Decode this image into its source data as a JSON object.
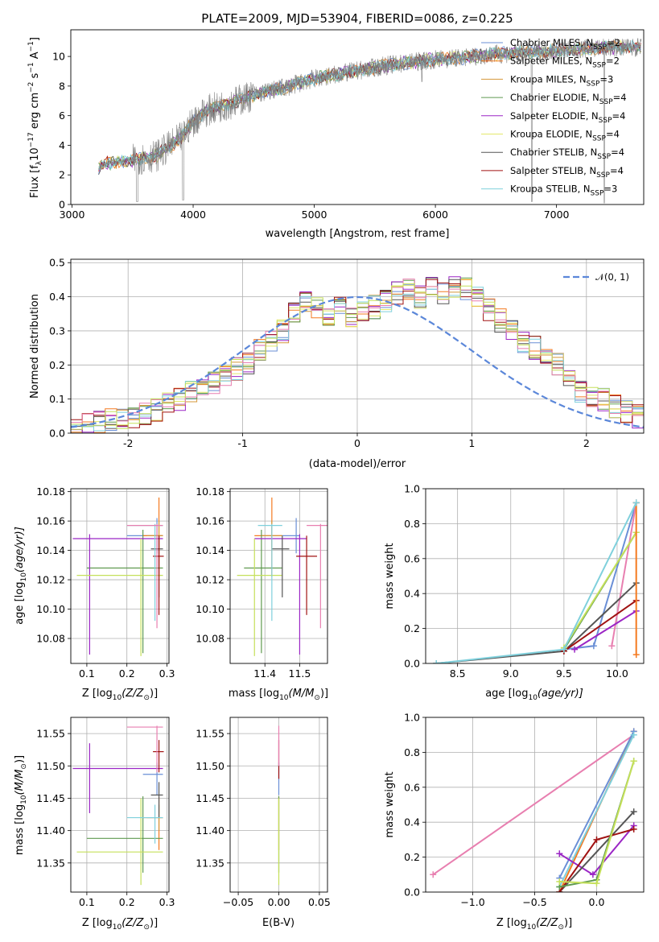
{
  "colors": {
    "Chabrier MILES": "#6a8fd6",
    "Salpeter MILES": "#f47a20",
    "Kroupa MILES": "#d4973a",
    "Chabrier ELODIE": "#5f9a50",
    "Salpeter ELODIE": "#9b26c5",
    "Kroupa ELODIE": "#e3e86a",
    "Chabrier STELIB": "#555555",
    "Salpeter STELIB": "#a01212",
    "Kroupa STELIB": "#7fd0dc",
    "Kroupa ELODIE alt": "#c5e05a",
    "pink": "#e87fb0",
    "data": "#808080",
    "normal": "#5b87d9"
  },
  "chart_data": [
    {
      "id": "spectrum",
      "type": "line",
      "title": "PLATE=2009, MJD=53904, FIBERID=0086, z=0.225",
      "xlabel": "wavelength [Angstrom, rest frame]",
      "ylabel": "Flux [f",
      "ylabel_sub": "λ",
      "ylabel_rest": "10",
      "ylabel_exp1": "−17",
      "ylabel_mid": " erg cm",
      "ylabel_exp2": "−2",
      "ylabel_mid2": " s",
      "ylabel_exp3": "−1",
      "ylabel_end": " A",
      "ylabel_exp4": "−1",
      "ylabel_close": "]",
      "xlim": [
        2990,
        7720
      ],
      "ylim": [
        0,
        11.8
      ],
      "xticks": [
        3000,
        4000,
        5000,
        6000,
        7000
      ],
      "yticks": [
        0,
        2,
        4,
        6,
        8,
        10
      ],
      "continuum_x": [
        3200,
        3300,
        3500,
        3700,
        3900,
        4000,
        4100,
        4300,
        4500,
        4800,
        5000,
        5200,
        5400,
        5600,
        5800,
        6000,
        6200,
        6400,
        6600,
        6800,
        7000,
        7200,
        7400,
        7700
      ],
      "continuum_y": [
        2.4,
        2.8,
        3.0,
        3.3,
        4.5,
        5.6,
        6.3,
        6.8,
        7.4,
        8.0,
        8.5,
        8.8,
        9.1,
        9.4,
        9.6,
        9.8,
        9.9,
        10.1,
        10.2,
        10.3,
        10.4,
        10.5,
        10.6,
        10.6
      ],
      "legend": [
        {
          "name": "Chabrier MILES",
          "suffix": "2"
        },
        {
          "name": "Salpeter MILES",
          "suffix": "2"
        },
        {
          "name": "Kroupa MILES",
          "suffix": "3"
        },
        {
          "name": "Chabrier ELODIE",
          "suffix": "4"
        },
        {
          "name": "Salpeter ELODIE",
          "suffix": "4"
        },
        {
          "name": "Kroupa ELODIE",
          "suffix": "4"
        },
        {
          "name": "Chabrier STELIB",
          "suffix": "4"
        },
        {
          "name": "Salpeter STELIB",
          "suffix": "4"
        },
        {
          "name": "Kroupa STELIB",
          "suffix": "3"
        }
      ],
      "legend_n": "N",
      "legend_ssp": "SSP",
      "legend_placement": "top-right"
    },
    {
      "id": "residuals",
      "type": "bar",
      "xlabel": "(data-model)/error",
      "ylabel": "Normed distribution",
      "xlim": [
        -2.5,
        2.5
      ],
      "ylim": [
        0,
        0.51
      ],
      "xticks": [
        -2,
        -1,
        0,
        1,
        2
      ],
      "yticks": [
        0.0,
        0.1,
        0.2,
        0.3,
        0.4,
        0.5
      ],
      "grid": true,
      "bin_width": 0.1,
      "bin_start": -2.5,
      "histogram": [
        0.02,
        0.025,
        0.035,
        0.04,
        0.045,
        0.05,
        0.055,
        0.07,
        0.09,
        0.1,
        0.12,
        0.13,
        0.15,
        0.17,
        0.19,
        0.2,
        0.24,
        0.27,
        0.3,
        0.36,
        0.39,
        0.37,
        0.35,
        0.37,
        0.34,
        0.36,
        0.37,
        0.39,
        0.41,
        0.42,
        0.4,
        0.43,
        0.41,
        0.43,
        0.42,
        0.4,
        0.36,
        0.33,
        0.3,
        0.27,
        0.25,
        0.22,
        0.2,
        0.17,
        0.12,
        0.1,
        0.1,
        0.08,
        0.06,
        0.05,
        0.04
      ],
      "legend": "𝒩(0, 1)",
      "legend_placement": "top-right"
    },
    {
      "id": "age-vs-Z",
      "type": "scatter",
      "xlabel": "Z [log",
      "xlabel_sub": "10",
      "xlabel_rest": "(Z/Z",
      "xlabel_sun": "⊙",
      "xlabel_end": ")]",
      "ylabel": "age  [log",
      "ylabel_sub": "10",
      "ylabel_rest": "(age/yr)]",
      "xlim": [
        0.06,
        0.305
      ],
      "ylim": [
        10.063,
        10.182
      ],
      "xticks": [
        0.1,
        0.2,
        0.3
      ],
      "xtick_labels": [
        "0.1",
        "0.2",
        "0.3"
      ],
      "yticks": [
        10.08,
        10.1,
        10.12,
        10.14,
        10.16,
        10.18
      ],
      "points": [
        {
          "x": 0.275,
          "y": 10.15,
          "xl": 0.2,
          "xh": 0.29,
          "yl": 10.138,
          "yh": 10.162,
          "c": "#6a8fd6"
        },
        {
          "x": 0.28,
          "y": 10.15,
          "xl": 0.24,
          "xh": 0.29,
          "yl": 10.122,
          "yh": 10.176,
          "c": "#f47a20"
        },
        {
          "x": 0.28,
          "y": 10.15,
          "xl": 0.25,
          "xh": 0.29,
          "yl": 10.14,
          "yh": 10.16,
          "c": "#d4973a"
        },
        {
          "x": 0.24,
          "y": 10.128,
          "xl": 0.1,
          "xh": 0.29,
          "yl": 10.07,
          "yh": 10.154,
          "c": "#5f9a50"
        },
        {
          "x": 0.107,
          "y": 10.148,
          "xl": 0.065,
          "xh": 0.29,
          "yl": 10.069,
          "yh": 10.151,
          "c": "#9b26c5"
        },
        {
          "x": 0.235,
          "y": 10.123,
          "xl": 0.075,
          "xh": 0.29,
          "yl": 10.068,
          "yh": 10.148,
          "c": "#c5e05a"
        },
        {
          "x": 0.28,
          "y": 10.141,
          "xl": 0.26,
          "xh": 0.29,
          "yl": 10.108,
          "yh": 10.15,
          "c": "#555555"
        },
        {
          "x": 0.28,
          "y": 10.136,
          "xl": 0.265,
          "xh": 0.292,
          "yl": 10.096,
          "yh": 10.15,
          "c": "#a01212"
        },
        {
          "x": 0.27,
          "y": 10.157,
          "xl": 0.2,
          "xh": 0.29,
          "yl": 10.092,
          "yh": 10.158,
          "c": "#7fd0dc"
        },
        {
          "x": 0.275,
          "y": 10.157,
          "xl": 0.2,
          "xh": 0.29,
          "yl": 10.087,
          "yh": 10.158,
          "c": "#e87fb0"
        }
      ]
    },
    {
      "id": "age-vs-mass",
      "type": "scatter",
      "xlabel": "mass [log",
      "xlabel_sub": "10",
      "xlabel_rest": "(M/M",
      "xlabel_sun": "⊙",
      "xlabel_end": ")]",
      "xlim": [
        11.3,
        11.58
      ],
      "ylim": [
        10.063,
        10.182
      ],
      "xticks": [
        11.4,
        11.5
      ],
      "xtick_labels": [
        "11.4",
        "11.5"
      ],
      "yticks": [
        10.08,
        10.1,
        10.12,
        10.14,
        10.16,
        10.18
      ],
      "points": [
        {
          "x": 11.49,
          "y": 10.15,
          "xl": 11.45,
          "xh": 11.5,
          "yl": 10.138,
          "yh": 10.162,
          "c": "#6a8fd6"
        },
        {
          "x": 11.42,
          "y": 10.15,
          "xl": 11.37,
          "xh": 11.45,
          "yl": 10.122,
          "yh": 10.176,
          "c": "#f47a20"
        },
        {
          "x": 11.42,
          "y": 10.15,
          "xl": 11.39,
          "xh": 11.45,
          "yl": 10.14,
          "yh": 10.16,
          "c": "#d4973a"
        },
        {
          "x": 11.39,
          "y": 10.128,
          "xl": 11.34,
          "xh": 11.45,
          "yl": 10.07,
          "yh": 10.154,
          "c": "#5f9a50"
        },
        {
          "x": 11.5,
          "y": 10.148,
          "xl": 11.37,
          "xh": 11.52,
          "yl": 10.069,
          "yh": 10.151,
          "c": "#9b26c5"
        },
        {
          "x": 11.37,
          "y": 10.123,
          "xl": 11.32,
          "xh": 11.45,
          "yl": 10.068,
          "yh": 10.148,
          "c": "#c5e05a"
        },
        {
          "x": 11.45,
          "y": 10.141,
          "xl": 11.42,
          "xh": 11.47,
          "yl": 10.108,
          "yh": 10.15,
          "c": "#555555"
        },
        {
          "x": 11.52,
          "y": 10.136,
          "xl": 11.49,
          "xh": 11.55,
          "yl": 10.096,
          "yh": 10.15,
          "c": "#a01212"
        },
        {
          "x": 11.42,
          "y": 10.157,
          "xl": 11.38,
          "xh": 11.45,
          "yl": 10.092,
          "yh": 10.158,
          "c": "#7fd0dc"
        },
        {
          "x": 11.56,
          "y": 10.157,
          "xl": 11.52,
          "xh": 11.58,
          "yl": 10.087,
          "yh": 10.158,
          "c": "#e87fb0"
        }
      ]
    },
    {
      "id": "weight-vs-age",
      "type": "line",
      "xlabel": "age  [log",
      "xlabel_sub": "10",
      "xlabel_rest": "(age/yr)]",
      "ylabel": "mass weight",
      "xlim": [
        8.2,
        10.25
      ],
      "ylim": [
        0,
        1.0
      ],
      "xticks": [
        8.5,
        9.0,
        9.5,
        10.0
      ],
      "xtick_labels": [
        "8.5",
        "9.0",
        "9.5",
        "10.0"
      ],
      "yticks": [
        0.0,
        0.2,
        0.4,
        0.6,
        0.8,
        1.0
      ],
      "yticks_labels": [
        "0.0",
        "0.2",
        "0.4",
        "0.6",
        "0.8",
        "1.0"
      ],
      "grid": true,
      "series": [
        {
          "c": "#6a8fd6",
          "x": [
            9.5,
            9.78,
            10.18
          ],
          "y": [
            0.08,
            0.1,
            0.92
          ]
        },
        {
          "c": "#e87fb0",
          "x": [
            9.95,
            10.18
          ],
          "y": [
            0.1,
            0.92
          ]
        },
        {
          "c": "#9b26c5",
          "x": [
            9.6,
            10.18
          ],
          "y": [
            0.08,
            0.3
          ]
        },
        {
          "c": "#555555",
          "x": [
            8.3,
            9.5,
            10.18
          ],
          "y": [
            0.0,
            0.07,
            0.46
          ]
        },
        {
          "c": "#a01212",
          "x": [
            9.5,
            10.18
          ],
          "y": [
            0.07,
            0.36
          ]
        },
        {
          "c": "#5f9a50",
          "x": [
            9.5,
            10.18
          ],
          "y": [
            0.08,
            0.75
          ]
        },
        {
          "c": "#c5e05a",
          "x": [
            9.5,
            10.18
          ],
          "y": [
            0.09,
            0.75
          ]
        },
        {
          "c": "#f47a20",
          "x": [
            10.18,
            10.18
          ],
          "y": [
            0.05,
            0.92
          ]
        },
        {
          "c": "#7fd0dc",
          "x": [
            8.3,
            9.5,
            10.18
          ],
          "y": [
            0.0,
            0.08,
            0.92
          ]
        }
      ]
    },
    {
      "id": "mass-vs-Z",
      "type": "scatter",
      "xlabel": "Z [log",
      "xlabel_sub": "10",
      "xlabel_rest": "(Z/Z",
      "xlabel_sun": "⊙",
      "xlabel_end": ")]",
      "ylabel": "mass [log",
      "ylabel_sub": "10",
      "ylabel_rest": "(M/M",
      "ylabel_sun": "⊙",
      "ylabel_end": ")]",
      "xlim": [
        0.06,
        0.305
      ],
      "ylim": [
        11.305,
        11.575
      ],
      "xticks": [
        0.1,
        0.2,
        0.3
      ],
      "xtick_labels": [
        "0.1",
        "0.2",
        "0.3"
      ],
      "yticks": [
        11.35,
        11.4,
        11.45,
        11.5,
        11.55
      ],
      "points": [
        {
          "x": 0.275,
          "y": 11.487,
          "xl": 0.24,
          "xh": 0.29,
          "yl": 11.455,
          "yh": 11.505,
          "c": "#6a8fd6"
        },
        {
          "x": 0.28,
          "y": 11.42,
          "xl": 0.24,
          "xh": 0.29,
          "yl": 11.37,
          "yh": 11.452,
          "c": "#f47a20"
        },
        {
          "x": 0.28,
          "y": 11.42,
          "xl": 0.25,
          "xh": 0.29,
          "yl": 11.4,
          "yh": 11.44,
          "c": "#d4973a"
        },
        {
          "x": 0.24,
          "y": 11.388,
          "xl": 0.1,
          "xh": 0.29,
          "yl": 11.335,
          "yh": 11.453,
          "c": "#5f9a50"
        },
        {
          "x": 0.107,
          "y": 11.496,
          "xl": 0.065,
          "xh": 0.29,
          "yl": 11.427,
          "yh": 11.535,
          "c": "#9b26c5"
        },
        {
          "x": 0.235,
          "y": 11.367,
          "xl": 0.075,
          "xh": 0.29,
          "yl": 11.316,
          "yh": 11.45,
          "c": "#c5e05a"
        },
        {
          "x": 0.28,
          "y": 11.455,
          "xl": 0.26,
          "xh": 0.29,
          "yl": 11.42,
          "yh": 11.475,
          "c": "#555555"
        },
        {
          "x": 0.28,
          "y": 11.522,
          "xl": 0.265,
          "xh": 0.292,
          "yl": 11.49,
          "yh": 11.54,
          "c": "#a01212"
        },
        {
          "x": 0.27,
          "y": 11.42,
          "xl": 0.2,
          "xh": 0.29,
          "yl": 11.38,
          "yh": 11.44,
          "c": "#7fd0dc"
        },
        {
          "x": 0.275,
          "y": 11.56,
          "xl": 0.2,
          "xh": 0.29,
          "yl": 11.49,
          "yh": 11.562,
          "c": "#e87fb0"
        }
      ]
    },
    {
      "id": "mass-vs-EBV",
      "type": "scatter",
      "xlabel": "E(B-V)",
      "xlim": [
        -0.06,
        0.06
      ],
      "ylim": [
        11.305,
        11.575
      ],
      "xticks": [
        -0.05,
        0.0,
        0.05
      ],
      "xtick_labels": [
        "−0.05",
        "0.00",
        "0.05"
      ],
      "yticks": [
        11.35,
        11.4,
        11.45,
        11.5,
        11.55
      ],
      "points": [
        {
          "x": 0.0,
          "y": 11.487,
          "yl": 11.455,
          "yh": 11.505,
          "c": "#6a8fd6"
        },
        {
          "x": 0.0,
          "y": 11.42,
          "yl": 11.37,
          "yh": 11.452,
          "c": "#f47a20"
        },
        {
          "x": 0.0,
          "y": 11.388,
          "yl": 11.335,
          "yh": 11.453,
          "c": "#5f9a50"
        },
        {
          "x": 0.0,
          "y": 11.367,
          "yl": 11.316,
          "yh": 11.45,
          "c": "#c5e05a"
        },
        {
          "x": 0.0,
          "y": 11.522,
          "yl": 11.48,
          "yh": 11.54,
          "c": "#a01212"
        },
        {
          "x": 0.0,
          "y": 11.56,
          "yl": 11.5,
          "yh": 11.562,
          "c": "#e87fb0"
        }
      ]
    },
    {
      "id": "weight-vs-Z",
      "type": "line",
      "xlabel": "Z [log",
      "xlabel_sub": "10",
      "xlabel_rest": "(Z/Z",
      "xlabel_sun": "⊙",
      "xlabel_end": ")]",
      "ylabel": "mass weight",
      "xlim": [
        -1.38,
        0.38
      ],
      "ylim": [
        0,
        1.0
      ],
      "xticks": [
        -1.0,
        -0.5,
        0.0
      ],
      "xtick_labels": [
        "−1.0",
        "−0.5",
        "0.0"
      ],
      "yticks": [
        0.0,
        0.2,
        0.4,
        0.6,
        0.8,
        1.0
      ],
      "yticks_labels": [
        "0.0",
        "0.2",
        "0.4",
        "0.6",
        "0.8",
        "1.0"
      ],
      "grid": true,
      "series": [
        {
          "c": "#e87fb0",
          "x": [
            -1.32,
            0.3
          ],
          "y": [
            0.1,
            0.9
          ]
        },
        {
          "c": "#f47a20",
          "x": [
            -0.3,
            0.3
          ],
          "y": [
            0.0,
            0.92
          ]
        },
        {
          "c": "#6a8fd6",
          "x": [
            -0.3,
            0.3
          ],
          "y": [
            0.08,
            0.92
          ]
        },
        {
          "c": "#7fd0dc",
          "x": [
            -0.3,
            0.3
          ],
          "y": [
            0.03,
            0.9
          ]
        },
        {
          "c": "#9b26c5",
          "x": [
            -0.3,
            -0.03,
            0.3
          ],
          "y": [
            0.22,
            0.1,
            0.38
          ]
        },
        {
          "c": "#555555",
          "x": [
            -0.3,
            0.3
          ],
          "y": [
            0.0,
            0.46
          ]
        },
        {
          "c": "#a01212",
          "x": [
            -0.3,
            0.0,
            0.3
          ],
          "y": [
            0.0,
            0.3,
            0.36
          ]
        },
        {
          "c": "#5f9a50",
          "x": [
            -0.3,
            0.0,
            0.3
          ],
          "y": [
            0.03,
            0.07,
            0.75
          ]
        },
        {
          "c": "#c5e05a",
          "x": [
            -0.3,
            0.0,
            0.3
          ],
          "y": [
            0.06,
            0.05,
            0.75
          ]
        }
      ]
    }
  ]
}
